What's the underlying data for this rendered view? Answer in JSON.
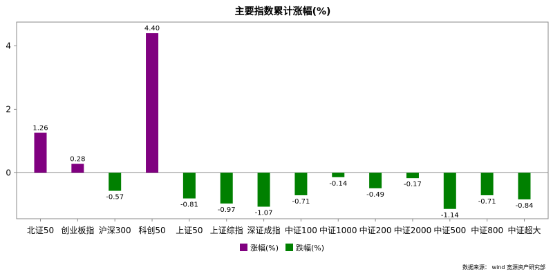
{
  "chart_data": {
    "type": "bar",
    "title": "主要指数累计涨幅(%)",
    "categories": [
      "北证50",
      "创业板指",
      "沪深300",
      "科创50",
      "上证50",
      "上证综指",
      "深证成指",
      "中证100",
      "中证1000",
      "中证200",
      "中证2000",
      "中证500",
      "中证800",
      "中证超大"
    ],
    "values": [
      1.26,
      0.28,
      -0.57,
      4.4,
      -0.81,
      -0.97,
      -1.07,
      -0.71,
      -0.14,
      -0.49,
      -0.17,
      -1.14,
      -0.71,
      -0.84
    ],
    "value_labels": [
      "1.26",
      "0.28",
      "-0.57",
      "4.40",
      "-0.81",
      "-0.97",
      "-1.07",
      "-0.71",
      "-0.14",
      "-0.49",
      "-0.17",
      "-1.14",
      "-0.71",
      "-0.84"
    ],
    "ylim": [
      -1.45,
      4.75
    ],
    "yticks": [
      0,
      2,
      4
    ],
    "ytick_labels": [
      "0",
      "2",
      "4"
    ],
    "grid": false,
    "legend_position": "bottom-center",
    "series": [
      {
        "name": "涨幅(%)",
        "color": "#800080"
      },
      {
        "name": "跌幅(%)",
        "color": "#008000"
      }
    ],
    "source_note": "数据来源： wind 宽源资产研究部",
    "colors": {
      "positive": "#800080",
      "negative": "#008000",
      "axis": "#888888"
    }
  }
}
